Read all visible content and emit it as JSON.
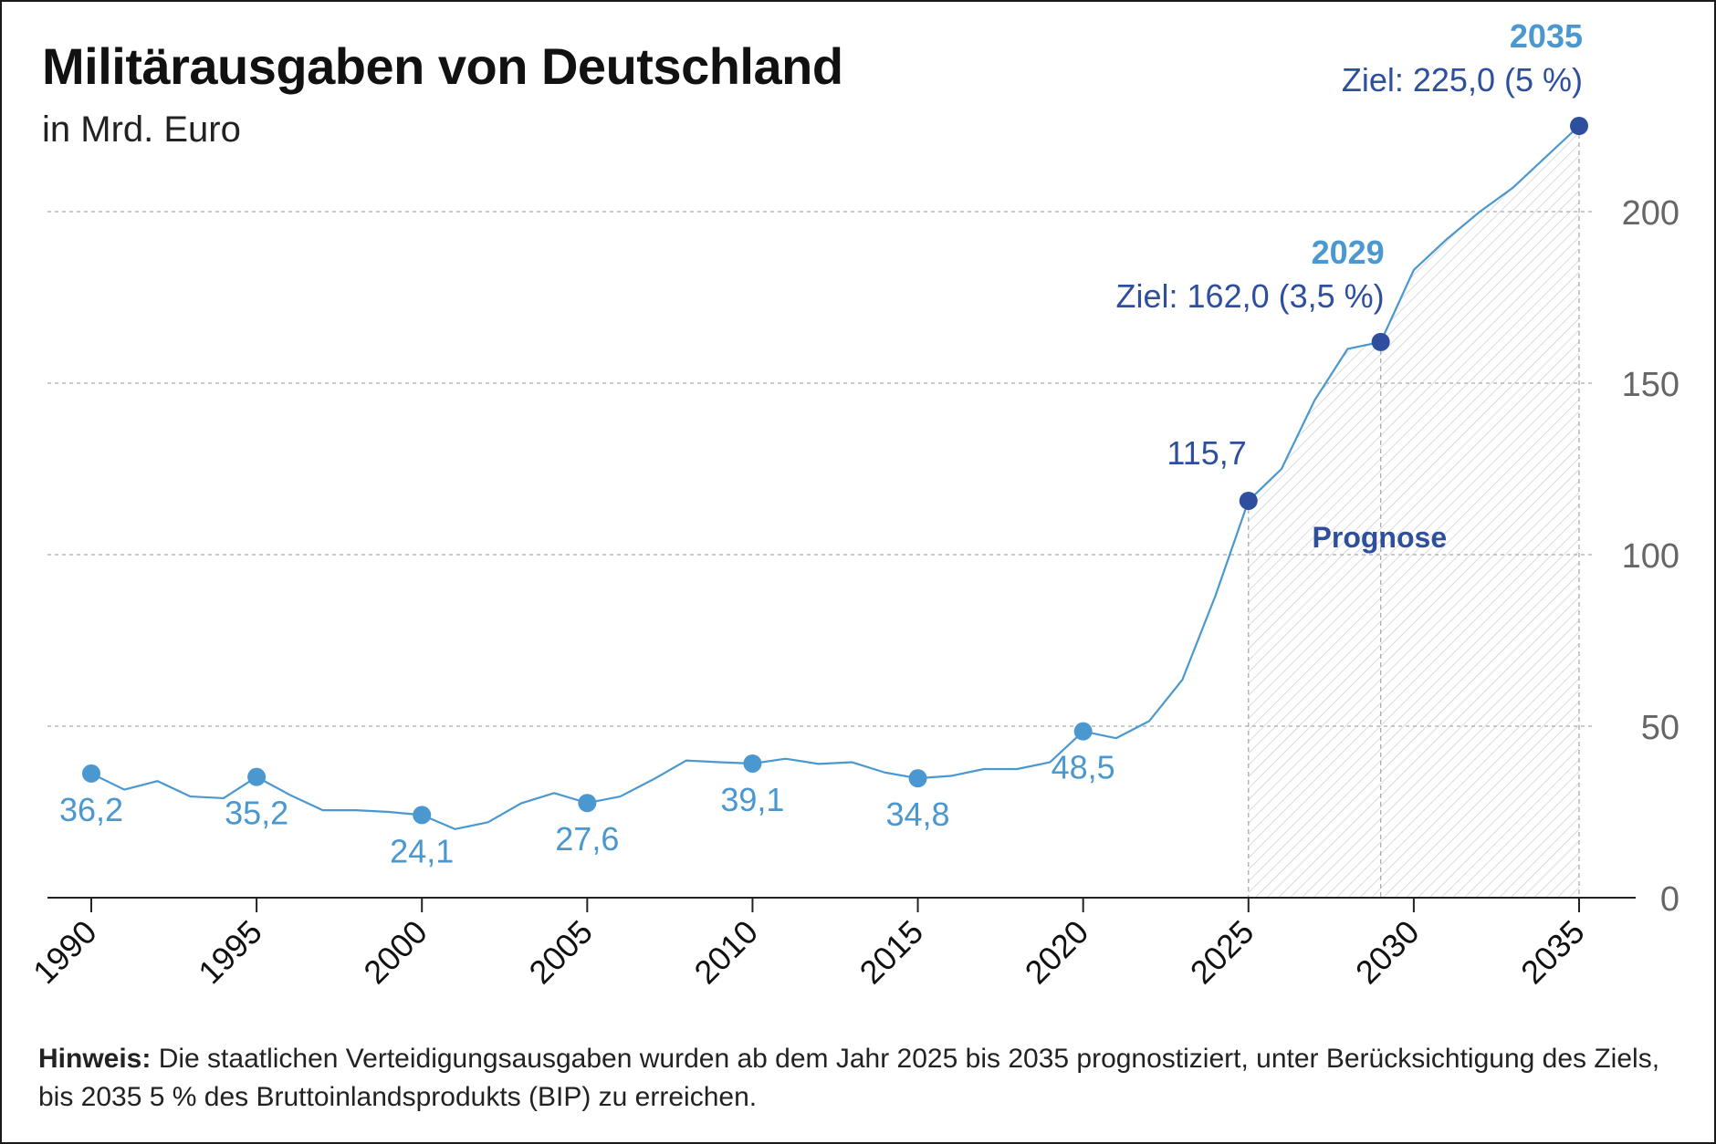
{
  "title": "Militärausgaben von Deutschland",
  "subtitle": "in Mrd. Euro",
  "note": {
    "label": "Hinweis:",
    "text": "Die staatlichen Verteidigungsausgaben wurden ab dem Jahr 2025 bis 2035 prognostiziert, unter Berücksichtigung des Ziels, bis 2035 5 % des Bruttoinlandsprodukts (BIP) zu erreichen."
  },
  "colors": {
    "history": "#4a98cf",
    "forecast_point": "#2d4f9e",
    "year_highlight": "#4a98cf",
    "grid": "#aaaaaa",
    "axis": "#222222",
    "tick_label": "#666666"
  },
  "chart_data": {
    "type": "line",
    "title": "Militärausgaben von Deutschland",
    "subtitle": "in Mrd. Euro",
    "xlim": [
      1990,
      2035
    ],
    "ylim": [
      0,
      225
    ],
    "x_ticks": [
      1990,
      1995,
      2000,
      2005,
      2010,
      2015,
      2020,
      2025,
      2030,
      2035
    ],
    "y_ticks": [
      0,
      50,
      100,
      150,
      200
    ],
    "grid": "horizontal dashed",
    "series": [
      {
        "x": [
          1990,
          1991,
          1992,
          1993,
          1994,
          1995,
          1996,
          1997,
          1998,
          1999,
          2000,
          2001,
          2002,
          2003,
          2004,
          2005,
          2006,
          2007,
          2008,
          2009,
          2010,
          2011,
          2012,
          2013,
          2014,
          2015,
          2016,
          2017,
          2018,
          2019,
          2020,
          2021,
          2022,
          2023,
          2024,
          2025,
          2026,
          2027,
          2028,
          2029,
          2030,
          2031,
          2032,
          2033,
          2034,
          2035
        ],
        "y": [
          36.2,
          31.5,
          34,
          29.5,
          29,
          35.2,
          30,
          25.5,
          25.5,
          25,
          24.1,
          20,
          22,
          27.5,
          30.5,
          27.6,
          29.5,
          34.5,
          40,
          39.5,
          39.1,
          40.5,
          39,
          39.5,
          36.5,
          34.8,
          35.5,
          37.5,
          37.5,
          39.5,
          48.5,
          46.5,
          51.5,
          63.5,
          88,
          115.7,
          125,
          145,
          160,
          162,
          183,
          192,
          200,
          207,
          216,
          225
        ]
      }
    ],
    "marked_points": [
      {
        "year": 1990,
        "value": 36.2,
        "label": "36,2"
      },
      {
        "year": 1995,
        "value": 35.2,
        "label": "35,2"
      },
      {
        "year": 2000,
        "value": 24.1,
        "label": "24,1"
      },
      {
        "year": 2005,
        "value": 27.6,
        "label": "27,6"
      },
      {
        "year": 2010,
        "value": 39.1,
        "label": "39,1"
      },
      {
        "year": 2015,
        "value": 34.8,
        "label": "34,8"
      },
      {
        "year": 2020,
        "value": 48.5,
        "label": "48,5"
      }
    ],
    "forecast_points": [
      {
        "year": 2025,
        "value": 115.7,
        "label": "115,7"
      },
      {
        "year": 2029,
        "value": 162.0,
        "year_label": "2029",
        "label": "Ziel: 162,0 (3,5 %)"
      },
      {
        "year": 2035,
        "value": 225.0,
        "year_label": "2035",
        "label": "Ziel: 225,0 (5 %)"
      }
    ],
    "forecast_region": {
      "from": 2025,
      "to": 2035,
      "label": "Prognose"
    }
  }
}
